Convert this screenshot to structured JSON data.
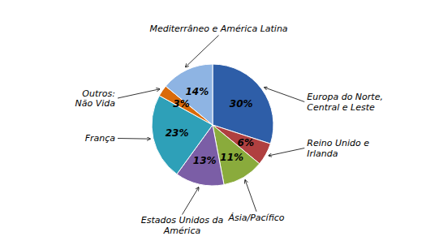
{
  "chart_data": {
    "type": "pie",
    "categories": [
      "Europa do Norte,\nCentral e Leste",
      "Reino Unido e\nIrlanda",
      "Ásia/Pacífico",
      "Estados Unidos da\nAmérica",
      "França",
      "Outros:\nNão Vida",
      "Mediterrâneo e América Latina"
    ],
    "values": [
      30,
      6,
      11,
      13,
      23,
      3,
      14
    ],
    "value_labels": [
      "30%",
      "6%",
      "11%",
      "13%",
      "23%",
      "3%",
      "14%"
    ],
    "colors": [
      "#2E5EA8",
      "#B04040",
      "#8AAB3C",
      "#7B5EA6",
      "#2EA0B8",
      "#D96A0A",
      "#8EB4E3"
    ],
    "data_labels": true
  }
}
